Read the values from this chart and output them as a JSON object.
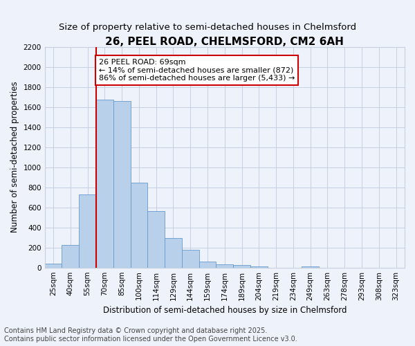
{
  "title": "26, PEEL ROAD, CHELMSFORD, CM2 6AH",
  "subtitle": "Size of property relative to semi-detached houses in Chelmsford",
  "xlabel": "Distribution of semi-detached houses by size in Chelmsford",
  "ylabel": "Number of semi-detached properties",
  "footer_line1": "Contains HM Land Registry data © Crown copyright and database right 2025.",
  "footer_line2": "Contains public sector information licensed under the Open Government Licence v3.0.",
  "bar_labels": [
    "25sqm",
    "40sqm",
    "55sqm",
    "70sqm",
    "85sqm",
    "100sqm",
    "114sqm",
    "129sqm",
    "144sqm",
    "159sqm",
    "174sqm",
    "189sqm",
    "204sqm",
    "219sqm",
    "234sqm",
    "249sqm",
    "263sqm",
    "278sqm",
    "293sqm",
    "308sqm",
    "323sqm"
  ],
  "bar_values": [
    40,
    225,
    725,
    1675,
    1660,
    845,
    560,
    295,
    175,
    60,
    35,
    25,
    15,
    0,
    0,
    15,
    0,
    0,
    0,
    0,
    0
  ],
  "bar_color": "#b8d0ea",
  "bar_edge_color": "#6699cc",
  "vline_color": "#cc0000",
  "vline_x_index": 2.5,
  "annotation_text": "26 PEEL ROAD: 69sqm\n← 14% of semi-detached houses are smaller (872)\n86% of semi-detached houses are larger (5,433) →",
  "annotation_box_facecolor": "white",
  "annotation_box_edgecolor": "#cc0000",
  "ylim": [
    0,
    2200
  ],
  "yticks": [
    0,
    200,
    400,
    600,
    800,
    1000,
    1200,
    1400,
    1600,
    1800,
    2000,
    2200
  ],
  "bg_color": "#eef2fb",
  "grid_color": "#c5cfe0",
  "title_fontsize": 11,
  "subtitle_fontsize": 9.5,
  "axis_label_fontsize": 8.5,
  "tick_fontsize": 7.5,
  "footer_fontsize": 7,
  "annotation_fontsize": 8
}
